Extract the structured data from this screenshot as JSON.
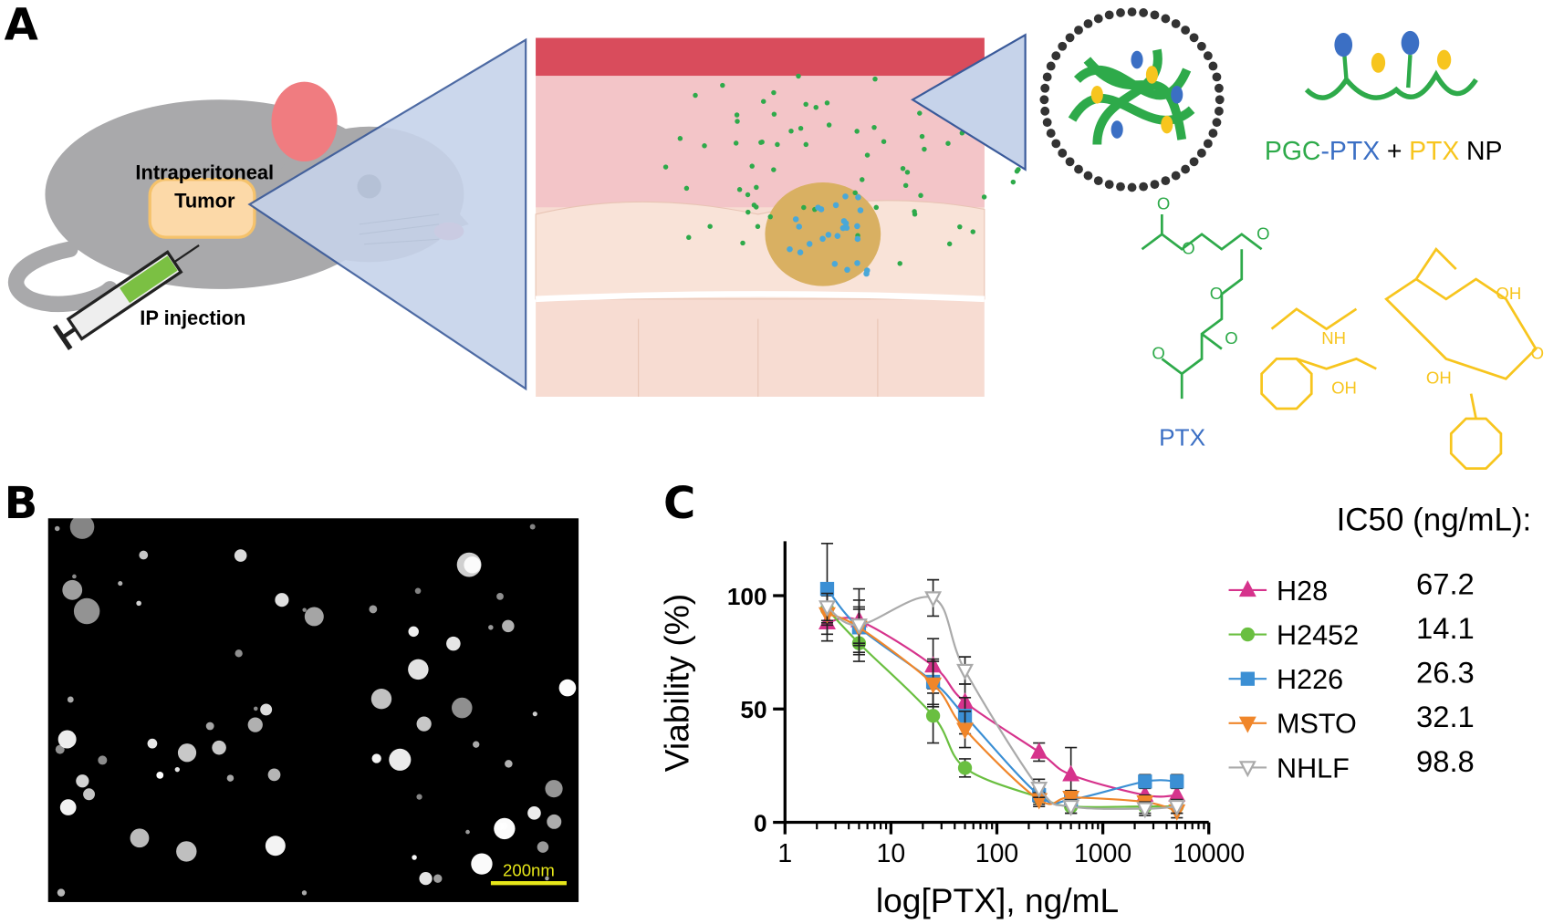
{
  "panel_labels": [
    "A",
    "B",
    "C"
  ],
  "illustration": {
    "tumor_label": [
      "Intraperitoneal",
      "Tumor"
    ],
    "injection_label": "IP injection",
    "nanoparticle_label": [
      "PGC",
      "-PTX",
      "+",
      "PTX",
      "NP"
    ],
    "chem_labels": [
      "O",
      "O",
      "O",
      "O",
      "O",
      "O",
      "PTX",
      "NH",
      "OH",
      "OH",
      "OH",
      "O"
    ]
  },
  "micrograph": {
    "scale_bar": "200nm"
  },
  "chart_data": {
    "type": "line",
    "ylabel": "Viability (%)",
    "xlabel": "log[PTX], ng/mL",
    "legend_title": "IC50 (ng/mL):",
    "log_x": true,
    "xlim": [
      1,
      10000
    ],
    "xticks": [
      1,
      10,
      100,
      1000,
      10000
    ],
    "ylim": [
      0,
      124
    ],
    "yticks": [
      0,
      50,
      100
    ],
    "x": [
      2.5,
      5,
      25,
      50,
      250,
      500,
      2500,
      5000
    ],
    "series": [
      {
        "name": "H28",
        "ic50": 67.2,
        "color": "#d6338c",
        "marker": "triangle-up",
        "values": [
          88,
          89,
          69,
          53,
          31,
          21,
          12,
          12
        ],
        "errors": [
          8,
          14,
          12,
          8,
          4,
          12,
          4,
          4
        ]
      },
      {
        "name": "H2452",
        "ic50": 14.1,
        "color": "#6abf40",
        "marker": "circle",
        "values": [
          94,
          79,
          47,
          24,
          11,
          7,
          7,
          7
        ],
        "errors": [
          6,
          8,
          12,
          4,
          3,
          3,
          3,
          3
        ]
      },
      {
        "name": "H226",
        "ic50": 26.3,
        "color": "#3b8fd4",
        "marker": "square",
        "values": [
          103,
          86,
          62,
          47,
          12,
          10,
          18,
          18
        ],
        "errors": [
          20,
          12,
          10,
          8,
          3,
          3,
          3,
          3
        ]
      },
      {
        "name": "MSTO",
        "ic50": 32.1,
        "color": "#f0862a",
        "marker": "triangle-down",
        "values": [
          92,
          86,
          61,
          41,
          10,
          11,
          9,
          5
        ],
        "errors": [
          5,
          8,
          10,
          8,
          3,
          3,
          3,
          3
        ]
      },
      {
        "name": "NHLF",
        "ic50": 98.8,
        "color": "#aaaaaa",
        "marker": "open-triangle-down",
        "values": [
          95,
          87,
          99,
          67,
          15,
          7,
          6,
          7
        ],
        "errors": [
          6,
          8,
          8,
          6,
          4,
          3,
          3,
          3
        ]
      }
    ]
  }
}
